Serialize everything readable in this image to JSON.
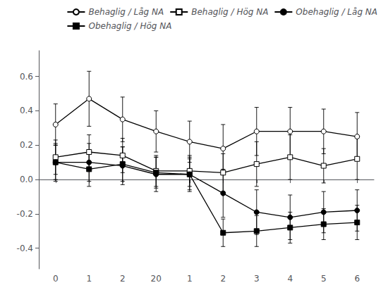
{
  "chart_data": {
    "type": "line",
    "categories": [
      "0",
      "1",
      "2",
      "20",
      "1",
      "2",
      "3",
      "4",
      "5",
      "6"
    ],
    "series": [
      {
        "name": "Behaglig / Låg NA",
        "color": "black",
        "marker": "hollow_circle",
        "line_style": "solid",
        "values": [
          0.32,
          0.47,
          0.35,
          0.28,
          0.22,
          0.18,
          0.28,
          0.28,
          0.28,
          0.25
        ],
        "yerr": [
          0.12,
          0.16,
          0.13,
          0.12,
          0.12,
          0.14,
          0.14,
          0.14,
          0.13,
          0.14
        ]
      },
      {
        "name": "Behaglig / Hög NA",
        "color": "black",
        "marker": "hollow_square",
        "line_style": "solid",
        "values": [
          0.13,
          0.16,
          0.14,
          0.05,
          0.05,
          0.04,
          0.09,
          0.13,
          0.08,
          0.12
        ],
        "yerr": [
          0.1,
          0.1,
          0.1,
          0.09,
          0.09,
          0.11,
          0.13,
          0.13,
          0.1,
          0.12
        ]
      },
      {
        "name": "Obehaglig / Låg NA",
        "color": "black",
        "marker": "circle",
        "line_style": "solid",
        "values": [
          0.1,
          0.1,
          0.08,
          0.03,
          0.03,
          -0.08,
          -0.19,
          -0.22,
          -0.19,
          -0.18
        ],
        "yerr": [
          0.11,
          0.11,
          0.11,
          0.1,
          0.1,
          0.14,
          0.13,
          0.13,
          0.12,
          0.12
        ]
      },
      {
        "name": "Obehaglig / Hög NA",
        "color": "black",
        "marker": "square",
        "line_style": "solid",
        "values": [
          0.1,
          0.06,
          0.09,
          0.04,
          0.03,
          -0.31,
          -0.3,
          -0.28,
          -0.26,
          -0.25
        ],
        "yerr": [
          0.1,
          0.1,
          0.1,
          0.09,
          0.09,
          0.08,
          0.09,
          0.09,
          0.09,
          0.1
        ]
      }
    ],
    "ylim": [
      -0.52,
      0.75
    ],
    "yticks": [
      -0.4,
      -0.2,
      {
        "value": 0,
        "label": "0.0"
      },
      0.2,
      0.4,
      0.6
    ],
    "grid": false,
    "legend": "upper right"
  }
}
